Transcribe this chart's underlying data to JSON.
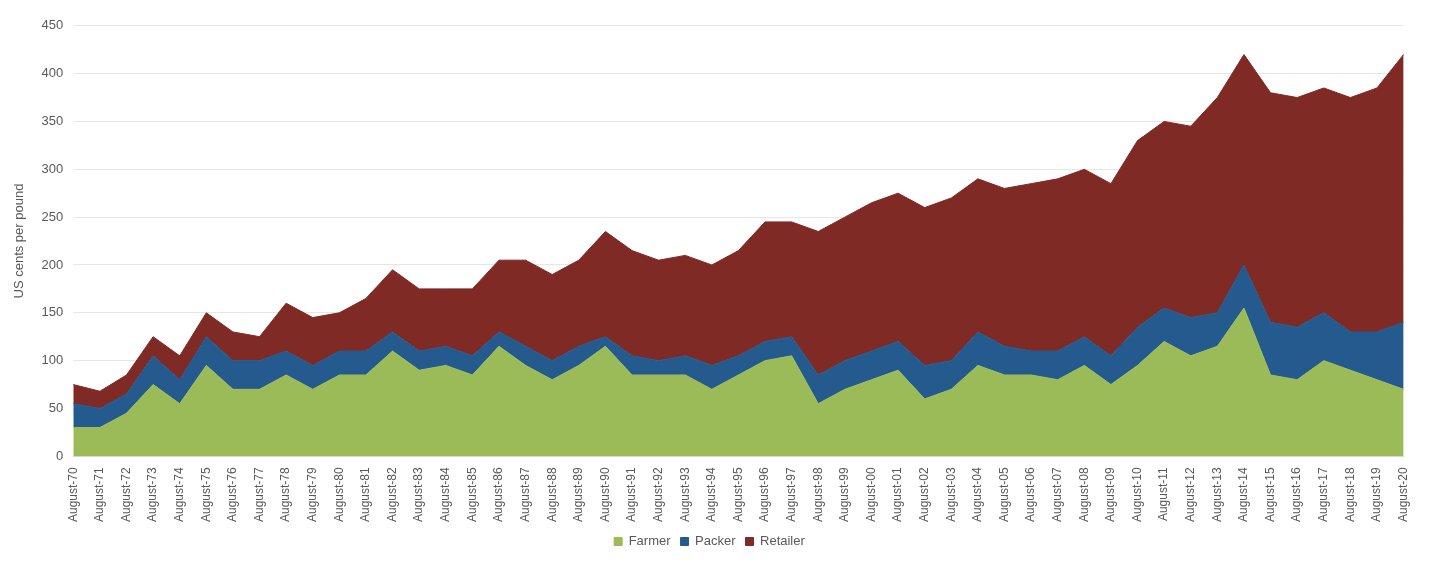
{
  "chart_data": {
    "type": "area",
    "stacked": true,
    "ylabel": "US cents per pound",
    "categories": [
      "August-70",
      "August-71",
      "August-72",
      "August-73",
      "August-74",
      "August-75",
      "August-76",
      "August-77",
      "August-78",
      "August-79",
      "August-80",
      "August-81",
      "August-82",
      "August-83",
      "August-84",
      "August-85",
      "August-86",
      "August-87",
      "August-88",
      "August-89",
      "August-90",
      "August-91",
      "August-92",
      "August-93",
      "August-94",
      "August-95",
      "August-96",
      "August-97",
      "August-98",
      "August-99",
      "August-00",
      "August-01",
      "August-02",
      "August-03",
      "August-04",
      "August-05",
      "August-06",
      "August-07",
      "August-08",
      "August-09",
      "August-10",
      "August-11",
      "August-12",
      "August-13",
      "August-14",
      "August-15",
      "August-16",
      "August-17",
      "August-18",
      "August-19",
      "August-20"
    ],
    "series": [
      {
        "name": "Farmer",
        "color": "#9bbb59",
        "values": [
          30,
          30,
          45,
          75,
          55,
          95,
          70,
          70,
          85,
          70,
          85,
          85,
          110,
          90,
          95,
          85,
          115,
          95,
          80,
          95,
          115,
          85,
          85,
          85,
          70,
          85,
          100,
          105,
          55,
          70,
          80,
          90,
          60,
          70,
          95,
          85,
          85,
          80,
          95,
          75,
          95,
          120,
          105,
          115,
          155,
          85,
          80,
          100,
          90,
          80,
          70
        ]
      },
      {
        "name": "Packer",
        "color": "#255a8e",
        "values": [
          25,
          20,
          20,
          30,
          25,
          30,
          30,
          30,
          25,
          25,
          25,
          25,
          20,
          20,
          20,
          20,
          15,
          20,
          20,
          20,
          10,
          20,
          15,
          20,
          25,
          20,
          20,
          20,
          30,
          30,
          30,
          30,
          35,
          30,
          35,
          30,
          25,
          30,
          30,
          30,
          40,
          35,
          40,
          35,
          45,
          55,
          55,
          50,
          40,
          50,
          70
        ]
      },
      {
        "name": "Retailer",
        "color": "#7f2a25",
        "values": [
          20,
          18,
          20,
          20,
          25,
          25,
          30,
          25,
          50,
          50,
          40,
          55,
          65,
          65,
          60,
          70,
          75,
          90,
          90,
          90,
          110,
          110,
          105,
          105,
          105,
          110,
          125,
          120,
          150,
          150,
          155,
          155,
          165,
          170,
          160,
          165,
          175,
          180,
          175,
          180,
          195,
          195,
          200,
          225,
          220,
          240,
          240,
          235,
          245,
          255,
          280
        ]
      }
    ],
    "ylim": [
      0,
      450
    ],
    "yticks": [
      0,
      50,
      100,
      150,
      200,
      250,
      300,
      350,
      400,
      450
    ],
    "grid": "y",
    "legend": "bottom"
  }
}
